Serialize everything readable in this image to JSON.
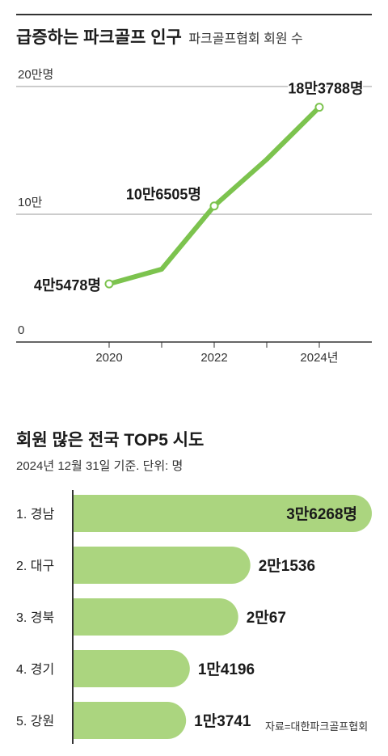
{
  "chart_data": [
    {
      "type": "line",
      "title": "급증하는 파크골프 인구",
      "subtitle": "파크골프협회 회원 수",
      "x": [
        2020,
        2021,
        2022,
        2023,
        2024
      ],
      "xtick_labels": [
        "2020",
        "2022",
        "2024년"
      ],
      "xtick_values": [
        2020,
        2022,
        2024
      ],
      "series": [
        {
          "values": [
            45478,
            57000,
            106505,
            143000,
            183788
          ]
        }
      ],
      "ylim": [
        0,
        200000
      ],
      "ytick_labels": [
        "0",
        "10만",
        "20만명"
      ],
      "ytick_values": [
        0,
        100000,
        200000
      ],
      "data_labels": [
        {
          "x": 2020,
          "text": "4만5478명"
        },
        {
          "x": 2022,
          "text": "10만6505명"
        },
        {
          "x": 2024,
          "text": "18만3788명"
        }
      ],
      "grid": true,
      "line_color": "#7cc34e"
    },
    {
      "type": "bar",
      "orientation": "horizontal",
      "title": "회원 많은 전국 TOP5 시도",
      "subtitle": "2024년 12월 31일 기준. 단위: 명",
      "categories": [
        "1. 경남",
        "2. 대구",
        "3. 경북",
        "4. 경기",
        "5. 강원"
      ],
      "values": [
        36268,
        21536,
        20067,
        14196,
        13741
      ],
      "value_labels": [
        "3만6268명",
        "2만1536",
        "2만67",
        "1만4196",
        "1만3741"
      ],
      "bar_color": "#abd57f"
    }
  ],
  "source": "자료=대한파크골프협회"
}
